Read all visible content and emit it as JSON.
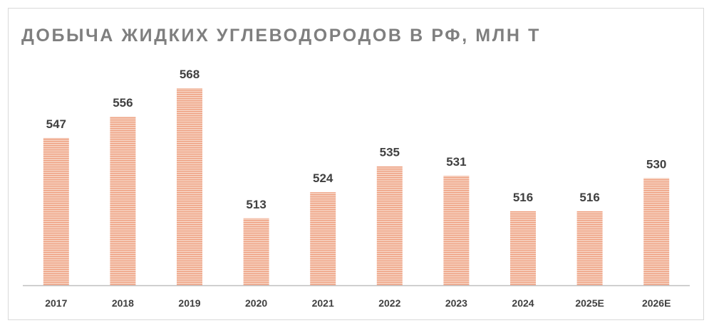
{
  "chart_data": {
    "type": "bar",
    "title": "ДОБЫЧА ЖИДКИХ УГЛЕВОДОРОДОВ В РФ, МЛН Т",
    "categories": [
      "2017",
      "2018",
      "2019",
      "2020",
      "2021",
      "2022",
      "2023",
      "2024",
      "2025E",
      "2026E"
    ],
    "values": [
      547,
      556,
      568,
      513,
      524,
      535,
      531,
      516,
      516,
      530
    ],
    "data_labels": [
      "547",
      "556",
      "568",
      "513",
      "524",
      "535",
      "531",
      "516",
      "516",
      "530"
    ],
    "xlabel": "",
    "ylabel": "",
    "y_axis_visible": false,
    "gridlines": false,
    "legend": "none",
    "colors": {
      "bar_fill": "#f7d6c6",
      "bar_stripe": "#ee9f80",
      "axis_line": "#bfbfbf",
      "label_text": "#404040",
      "title_text": "#7f7f7f"
    }
  }
}
